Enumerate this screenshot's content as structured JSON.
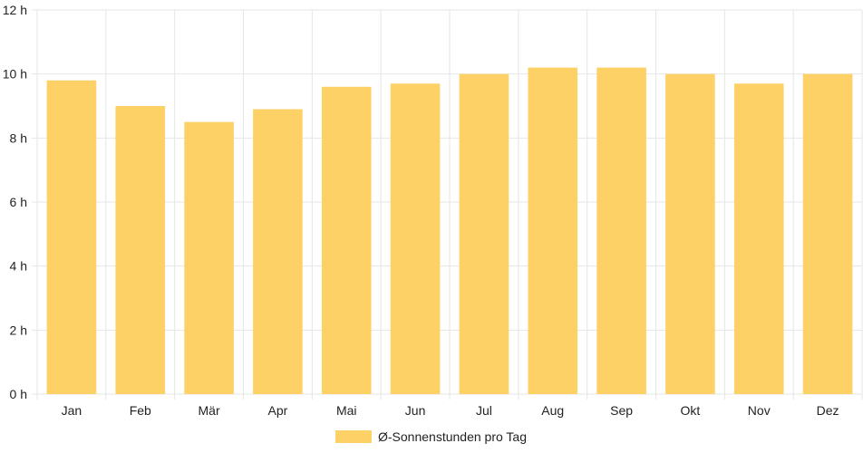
{
  "chart_data": {
    "type": "bar",
    "categories": [
      "Jan",
      "Feb",
      "Mär",
      "Apr",
      "Mai",
      "Jun",
      "Jul",
      "Aug",
      "Sep",
      "Okt",
      "Nov",
      "Dez"
    ],
    "series": [
      {
        "name": "Ø-Sonnenstunden pro Tag",
        "values": [
          9.8,
          9.0,
          8.5,
          8.9,
          9.6,
          9.7,
          10.0,
          10.2,
          10.2,
          10.0,
          9.7,
          10.0
        ],
        "color": "#fed166"
      }
    ],
    "yticks": [
      "0 h",
      "2 h",
      "4 h",
      "6 h",
      "8 h",
      "10 h",
      "12 h"
    ],
    "ylim": [
      0,
      12
    ],
    "grid": true,
    "legend": "bottom"
  }
}
